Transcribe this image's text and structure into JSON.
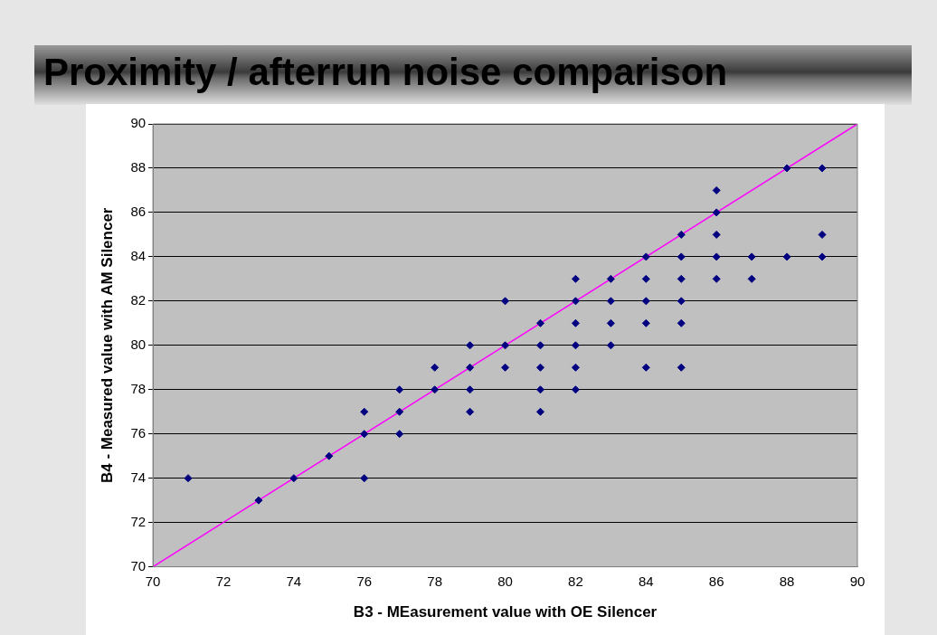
{
  "chart_data": {
    "type": "scatter",
    "title": "Proximity / afterrun noise comparison",
    "xlabel": "B3 - MEasurement value with OE Silencer",
    "ylabel": "B4 - Measured value with AM Silencer",
    "xlim": [
      70,
      90
    ],
    "xticks": [
      70,
      72,
      74,
      76,
      78,
      80,
      82,
      84,
      86,
      88,
      90
    ],
    "ylim": [
      70,
      90
    ],
    "yticks": [
      70,
      72,
      74,
      76,
      78,
      80,
      82,
      84,
      86,
      88,
      90
    ],
    "grid": "y",
    "legend": false,
    "series": [
      {
        "type": "scatter",
        "color": "#000080",
        "marker": "diamond",
        "x": [
          71,
          73,
          74,
          75,
          76,
          76,
          76,
          77,
          77,
          77,
          78,
          78,
          79,
          79,
          79,
          79,
          80,
          80,
          80,
          81,
          81,
          81,
          81,
          81,
          82,
          82,
          82,
          82,
          82,
          82,
          83,
          83,
          83,
          83,
          84,
          84,
          84,
          84,
          84,
          85,
          85,
          85,
          85,
          85,
          85,
          86,
          86,
          86,
          86,
          86,
          87,
          87,
          88,
          88,
          89,
          89,
          89
        ],
        "values": [
          74,
          73,
          74,
          75,
          77,
          76,
          74,
          78,
          77,
          76,
          79,
          78,
          80,
          79,
          78,
          77,
          82,
          80,
          79,
          81,
          80,
          79,
          78,
          77,
          83,
          82,
          81,
          80,
          79,
          78,
          83,
          82,
          81,
          80,
          84,
          83,
          82,
          81,
          79,
          85,
          84,
          83,
          82,
          81,
          79,
          87,
          86,
          85,
          84,
          83,
          84,
          83,
          88,
          84,
          88,
          85,
          84
        ]
      },
      {
        "type": "line",
        "color": "#ff00ff",
        "marker": "none",
        "x": [
          70,
          90
        ],
        "values": [
          70,
          90
        ]
      }
    ]
  }
}
